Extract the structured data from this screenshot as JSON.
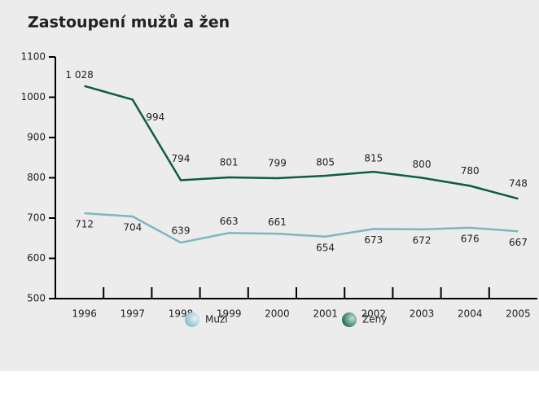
{
  "chart_data": {
    "type": "line",
    "title": "Zastoupení mužů a žen",
    "categories": [
      "1996",
      "1997",
      "1998",
      "1999",
      "2000",
      "2001",
      "2002",
      "2003",
      "2004",
      "2005"
    ],
    "series": [
      {
        "name": "Muži",
        "color": "#7fb6bd",
        "values": [
          712,
          704,
          639,
          663,
          661,
          654,
          673,
          672,
          676,
          667
        ]
      },
      {
        "name": "Ženy",
        "color": "#0f5a48",
        "values": [
          1028,
          994,
          794,
          801,
          799,
          805,
          815,
          800,
          780,
          748
        ],
        "value_labels": [
          "1 028",
          "994",
          "794",
          "801",
          "799",
          "805",
          "815",
          "800",
          "780",
          "748"
        ]
      }
    ],
    "ylim": [
      500,
      1100
    ],
    "yticks": [
      500,
      600,
      700,
      800,
      900,
      1000,
      1100
    ]
  }
}
